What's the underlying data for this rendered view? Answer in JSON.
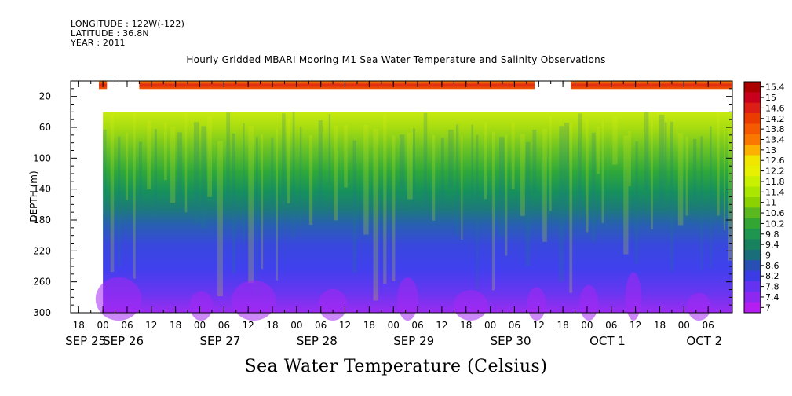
{
  "header": {
    "longitude": "LONGITUDE : 122W(-122)",
    "latitude": "LATITUDE : 36.8N",
    "year": "YEAR : 2011"
  },
  "chart_data": {
    "type": "heatmap",
    "title": "Hourly Gridded MBARI Mooring M1 Sea Water Temperature and Salinity Observations",
    "xlabel": "Sea Water Temperature (Celsius)",
    "ylabel": "DEPTH (m)",
    "ylim": [
      300,
      0
    ],
    "y_ticks": [
      20,
      60,
      100,
      140,
      180,
      220,
      260,
      300
    ],
    "x_hour_ticks": [
      "18",
      "00",
      "06",
      "12",
      "18",
      "00",
      "06",
      "12",
      "18",
      "00",
      "06",
      "12",
      "18",
      "00",
      "06",
      "12",
      "18",
      "00",
      "06",
      "12",
      "18",
      "00",
      "06",
      "12",
      "18",
      "00",
      "06"
    ],
    "x_day_labels": [
      "SEP 25",
      "SEP 26",
      "SEP 27",
      "SEP 28",
      "SEP 29",
      "SEP 30",
      "OCT  1",
      "OCT  2"
    ],
    "x_range_hours": [
      "2011-09-25T16:00",
      "2011-10-02T12:00"
    ],
    "colorbar": {
      "levels": [
        "15.4",
        "15",
        "14.6",
        "14.2",
        "13.8",
        "13.4",
        "13",
        "12.6",
        "12.2",
        "11.8",
        "11.4",
        "11",
        "10.6",
        "10.2",
        "9.8",
        "9.4",
        "9",
        "8.6",
        "8.2",
        "7.8",
        "7.4",
        "7"
      ],
      "colors": [
        "#aa0000",
        "#c8001e",
        "#dc1e14",
        "#eb3c00",
        "#f55a00",
        "#fa7800",
        "#fcb000",
        "#f0e600",
        "#e6f000",
        "#c8f000",
        "#aae600",
        "#8cd200",
        "#5ab91e",
        "#32a532",
        "#1e9650",
        "#18825f",
        "#1a6e7a",
        "#2850b4",
        "#3c3ce6",
        "#6432f0",
        "#8c28f0",
        "#b41ef0"
      ]
    },
    "surface_band": {
      "depth_range": [
        0,
        10
      ],
      "typical_temperature": 14.5,
      "gaps": [
        [
          "2011-09-25T16:00",
          "2011-09-25T23:00"
        ],
        [
          "2011-09-26T01:00",
          "2011-09-26T09:00"
        ],
        [
          "2011-09-30T11:00",
          "2011-09-30T20:00"
        ]
      ]
    },
    "deep_profile": {
      "depth_range": [
        40,
        300
      ],
      "data_start": "2011-09-26T00:00",
      "depth": [
        40,
        60,
        100,
        140,
        180,
        220,
        260,
        300
      ],
      "temperature": [
        11.6,
        11.2,
        10.6,
        9.6,
        8.7,
        8.2,
        7.8,
        7.4
      ]
    }
  }
}
